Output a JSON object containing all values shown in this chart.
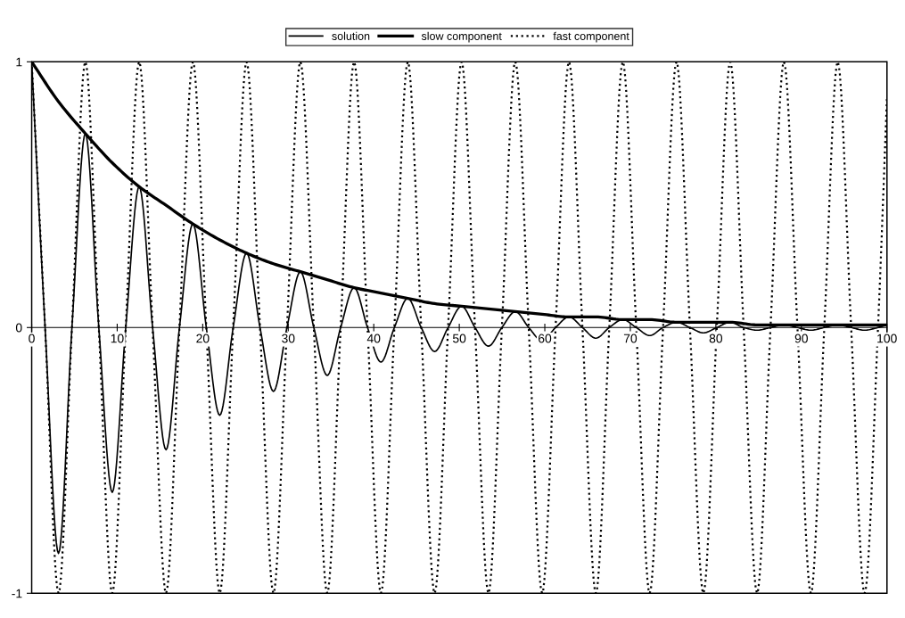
{
  "chart_data": {
    "type": "line",
    "xlim": [
      0,
      100
    ],
    "xticks": [
      0,
      10,
      20,
      30,
      40,
      50,
      60,
      70,
      80,
      90,
      100
    ],
    "ylim": [
      -1,
      1
    ],
    "yticks": [
      -1,
      0,
      1
    ],
    "grid": false,
    "legend": "top",
    "marker": "none",
    "series": [
      {
        "name": "solution",
        "color": "#000000",
        "line_style": "solid",
        "x": [
          0,
          1.57,
          3.14,
          4.71,
          6.28,
          7.85,
          9.42,
          11.0,
          12.57,
          14.14,
          15.71,
          17.28,
          18.85,
          20.42,
          21.99,
          23.56,
          25.13,
          26.7,
          28.27,
          29.85,
          31.42,
          32.99,
          34.56,
          36.13,
          37.7,
          39.27,
          40.84,
          42.41,
          43.98,
          45.55,
          47.12,
          48.69,
          50.27,
          51.84,
          53.41,
          54.98,
          56.55,
          58.12,
          59.69,
          61.26,
          62.83,
          64.4,
          65.97,
          67.54,
          69.12,
          70.69,
          72.26,
          73.83,
          75.4,
          76.97,
          78.54,
          80.11,
          81.68,
          83.25,
          84.82,
          86.39,
          87.96,
          89.54,
          91.11,
          92.68,
          94.25,
          95.82,
          97.39,
          98.96,
          100
        ],
        "values": [
          1,
          0,
          -0.85,
          0,
          0.73,
          0,
          -0.62,
          0,
          0.53,
          0,
          -0.46,
          0,
          0.39,
          0,
          -0.33,
          0,
          0.28,
          0,
          -0.24,
          0,
          0.21,
          0,
          -0.18,
          0,
          0.15,
          0,
          -0.13,
          0,
          0.11,
          0,
          -0.09,
          0,
          0.08,
          0,
          -0.07,
          0,
          0.06,
          0,
          -0.05,
          0,
          0.04,
          0,
          -0.04,
          0,
          0.03,
          0,
          -0.03,
          0,
          0.02,
          0,
          -0.02,
          0,
          0.02,
          0,
          -0.01,
          0,
          0.01,
          0,
          -0.01,
          0,
          0.01,
          0,
          -0.01,
          0,
          0.01
        ]
      },
      {
        "name": "slow component",
        "color": "#000000",
        "line_style": "solid",
        "x": [
          0,
          3.14,
          6.28,
          9.42,
          12.57,
          15.71,
          18.85,
          21.99,
          25.13,
          28.27,
          31.42,
          34.56,
          37.7,
          40.84,
          43.98,
          47.12,
          50.27,
          53.41,
          56.55,
          59.69,
          62.83,
          65.97,
          69.12,
          72.26,
          75.4,
          78.54,
          81.68,
          84.82,
          87.96,
          91.11,
          94.25,
          97.39,
          100
        ],
        "values": [
          1,
          0.85,
          0.73,
          0.62,
          0.53,
          0.46,
          0.39,
          0.33,
          0.28,
          0.24,
          0.21,
          0.18,
          0.15,
          0.13,
          0.11,
          0.09,
          0.08,
          0.07,
          0.06,
          0.05,
          0.04,
          0.04,
          0.03,
          0.03,
          0.02,
          0.02,
          0.02,
          0.01,
          0.01,
          0.01,
          0.01,
          0.01,
          0.01
        ]
      },
      {
        "name": "fast component",
        "color": "#000000",
        "line_style": "dotted",
        "x": [
          0,
          1.57,
          3.14,
          4.71,
          6.28,
          7.85,
          9.42,
          11.0,
          12.57,
          14.14,
          15.71,
          17.28,
          18.85,
          20.42,
          21.99,
          23.56,
          25.13,
          26.7,
          28.27,
          29.85,
          31.42,
          32.99,
          34.56,
          36.13,
          37.7,
          39.27,
          40.84,
          42.41,
          43.98,
          45.55,
          47.12,
          48.69,
          50.27,
          51.84,
          53.41,
          54.98,
          56.55,
          58.12,
          59.69,
          61.26,
          62.83,
          64.4,
          65.97,
          67.54,
          69.12,
          70.69,
          72.26,
          73.83,
          75.4,
          76.97,
          78.54,
          80.11,
          81.68,
          83.25,
          84.82,
          86.39,
          87.96,
          89.54,
          91.11,
          92.68,
          94.25,
          95.82,
          97.39,
          98.96,
          100
        ],
        "values": [
          1,
          0,
          -1,
          0,
          1,
          0,
          -1,
          0,
          1,
          0,
          -1,
          0,
          1,
          0,
          -1,
          0,
          1,
          0,
          -1,
          0,
          1,
          0,
          -1,
          0,
          1,
          0,
          -1,
          0,
          1,
          0,
          -1,
          0,
          1,
          0,
          -1,
          0,
          1,
          0,
          -1,
          0,
          1,
          0,
          -1,
          0,
          1,
          0,
          -1,
          0,
          1,
          0,
          -1,
          0,
          1,
          0,
          -1,
          0,
          1,
          0,
          -1,
          0,
          1,
          0,
          -1,
          0,
          0.86
        ]
      }
    ]
  }
}
